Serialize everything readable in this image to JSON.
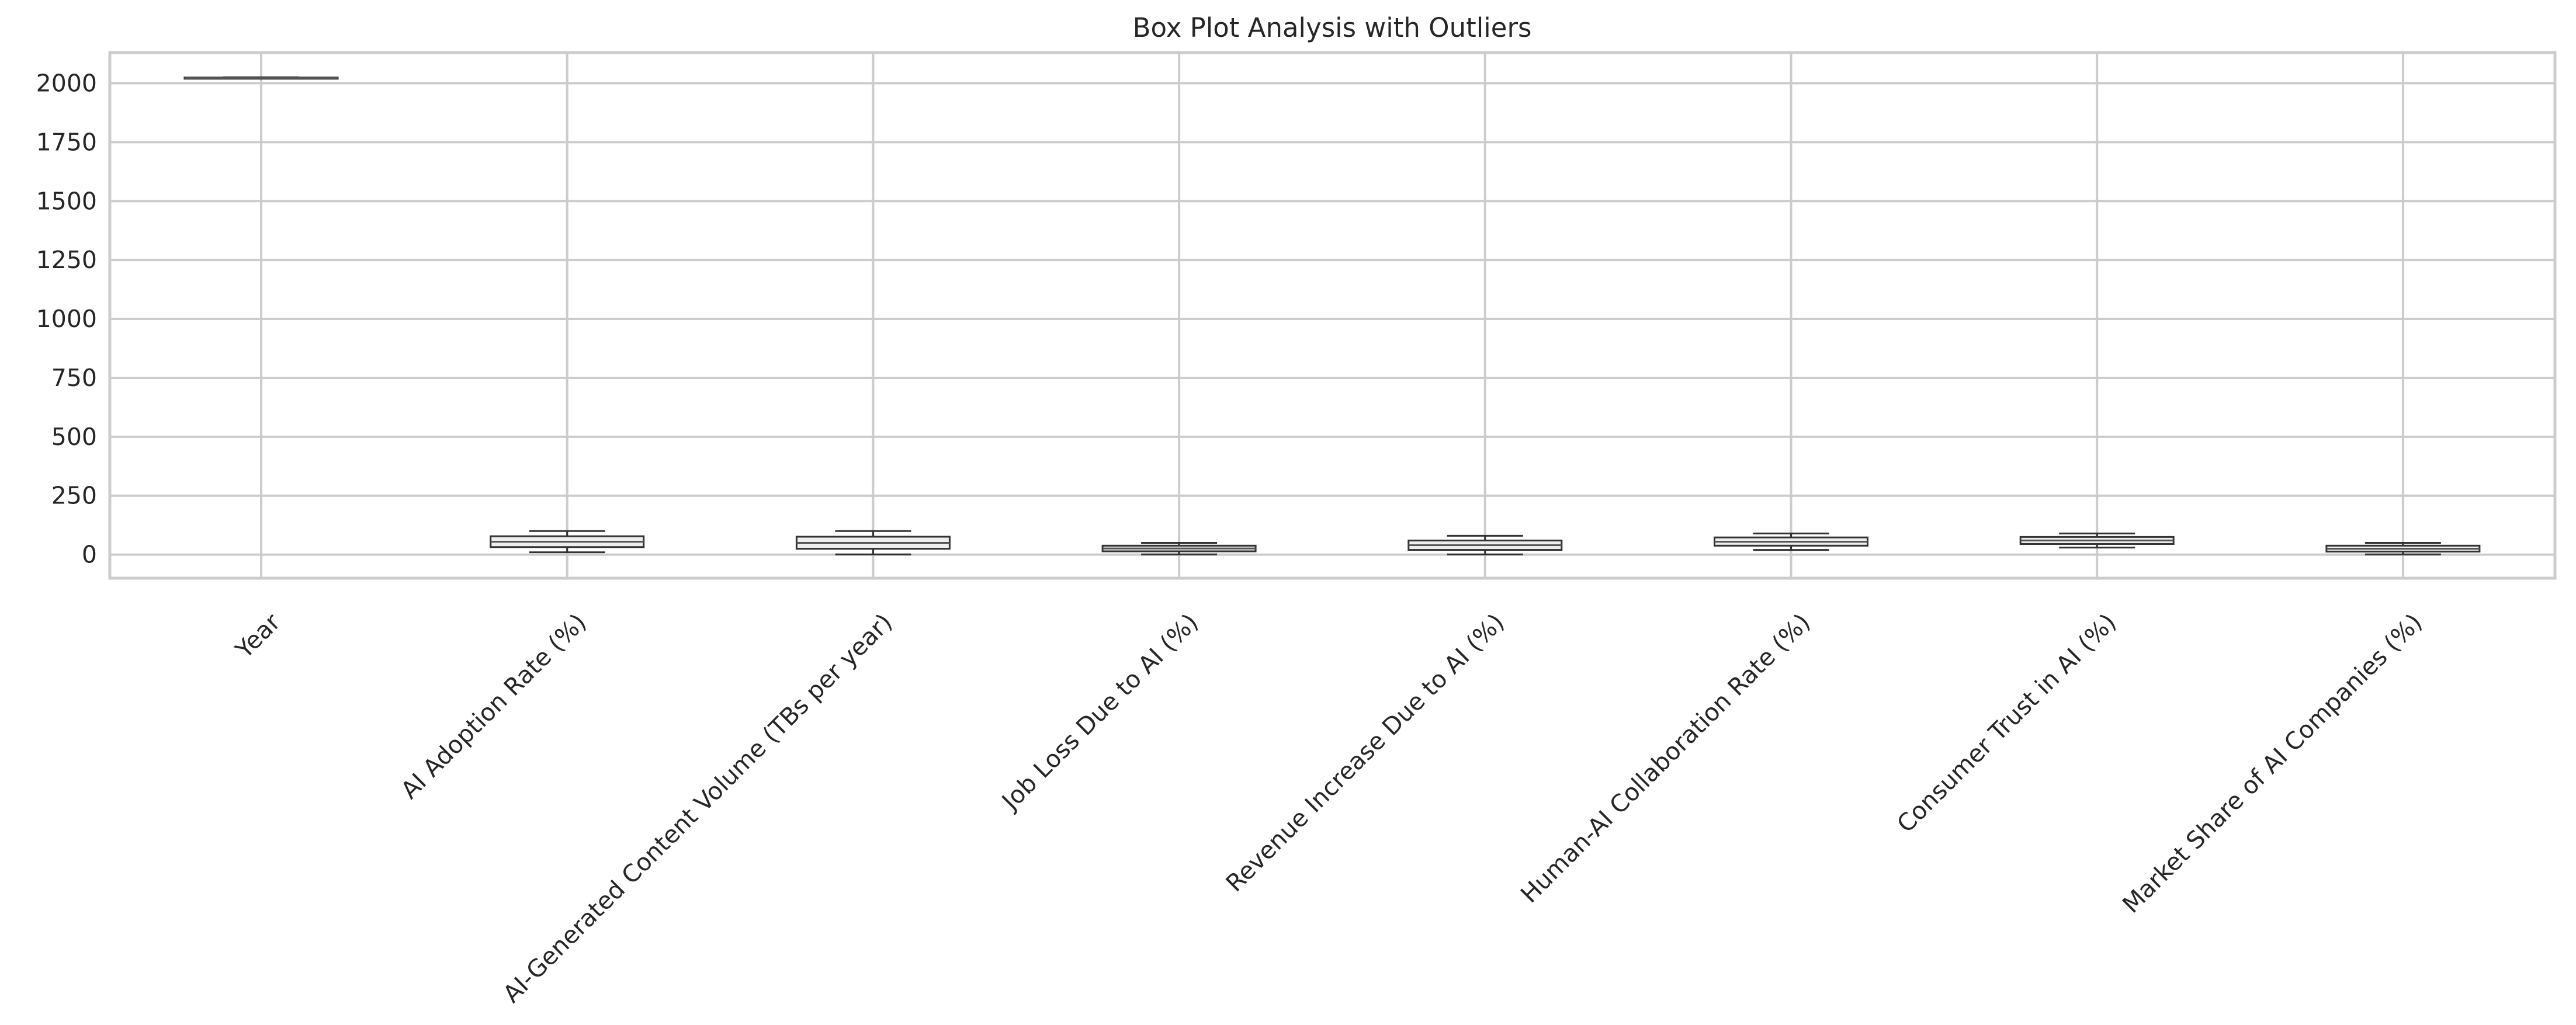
{
  "chart_data": {
    "type": "box",
    "title": "Box Plot Analysis with Outliers",
    "xlabel": "",
    "ylabel": "",
    "ylim": [
      -100,
      2130
    ],
    "yticks": [
      0,
      250,
      500,
      750,
      1000,
      1250,
      1500,
      1750,
      2000
    ],
    "grid": true,
    "legend": "none",
    "categories": [
      "Year",
      "AI Adoption Rate (%)",
      "AI-Generated Content Volume (TBs per year)",
      "Job Loss Due to AI (%)",
      "Revenue Increase Due to AI (%)",
      "Human-AI Collaboration Rate (%)",
      "Consumer Trust in AI (%)",
      "Market Share of AI Companies (%)"
    ],
    "boxes": [
      {
        "whisker_low": 2020,
        "q1": 2021,
        "median": 2022,
        "q3": 2024,
        "whisker_high": 2025
      },
      {
        "whisker_low": 10,
        "q1": 32,
        "median": 55,
        "q3": 78,
        "whisker_high": 100
      },
      {
        "whisker_low": 1,
        "q1": 25,
        "median": 50,
        "q3": 76,
        "whisker_high": 100
      },
      {
        "whisker_low": 1,
        "q1": 14,
        "median": 26,
        "q3": 38,
        "whisker_high": 50
      },
      {
        "whisker_low": 1,
        "q1": 20,
        "median": 40,
        "q3": 60,
        "whisker_high": 80
      },
      {
        "whisker_low": 20,
        "q1": 38,
        "median": 55,
        "q3": 73,
        "whisker_high": 90
      },
      {
        "whisker_low": 30,
        "q1": 45,
        "median": 60,
        "q3": 75,
        "whisker_high": 90
      },
      {
        "whisker_low": 1,
        "q1": 13,
        "median": 25,
        "q3": 38,
        "whisker_high": 50
      }
    ],
    "colors": {
      "box_fill": "#eeeeee",
      "box_edge": "#333333",
      "median": "#555555",
      "grid": "#cccccc",
      "text": "#262626"
    }
  }
}
